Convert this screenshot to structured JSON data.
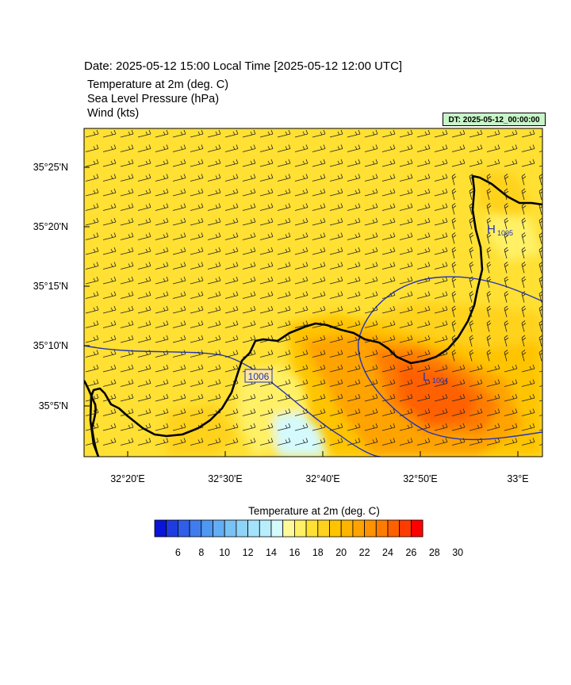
{
  "header": {
    "date_line": "Date: 2025-05-12  15:00 Local Time [2025-05-12  12:00 UTC]",
    "fields": [
      "Temperature at 2m   (deg. C)",
      "Sea Level Pressure   (hPa)",
      "Wind   (kts)"
    ],
    "dt_label": "DT: 2025-05-12_00:00:00"
  },
  "map": {
    "lat_ticks": [
      "35°25'N",
      "35°20'N",
      "35°15'N",
      "35°10'N",
      "35°5'N"
    ],
    "lon_ticks": [
      "32°20'E",
      "32°30'E",
      "32°40'E",
      "32°50'E",
      "33°E"
    ],
    "isobar_label": "1006",
    "high": {
      "letter": "H",
      "value": "1005"
    },
    "low": {
      "letter": "L",
      "value": "1004"
    },
    "background_color": "#ffe033"
  },
  "colorbar": {
    "title": "Temperature at 2m  (deg. C)",
    "tick_labels": [
      "6",
      "8",
      "10",
      "12",
      "14",
      "16",
      "18",
      "20",
      "22",
      "24",
      "26",
      "28",
      "30"
    ],
    "colors": [
      "#0a14d8",
      "#1e3ce0",
      "#2f5ee8",
      "#3f7cee",
      "#4f98f2",
      "#63adf4",
      "#78c2f6",
      "#8ed4f8",
      "#a3e2fa",
      "#b8eefc",
      "#d4fafd",
      "#fffa99",
      "#fff066",
      "#ffe033",
      "#ffd21e",
      "#ffc400",
      "#ffb400",
      "#ffa300",
      "#ff9200",
      "#ff7c00",
      "#ff6000",
      "#ff3c00",
      "#ff0000"
    ]
  }
}
